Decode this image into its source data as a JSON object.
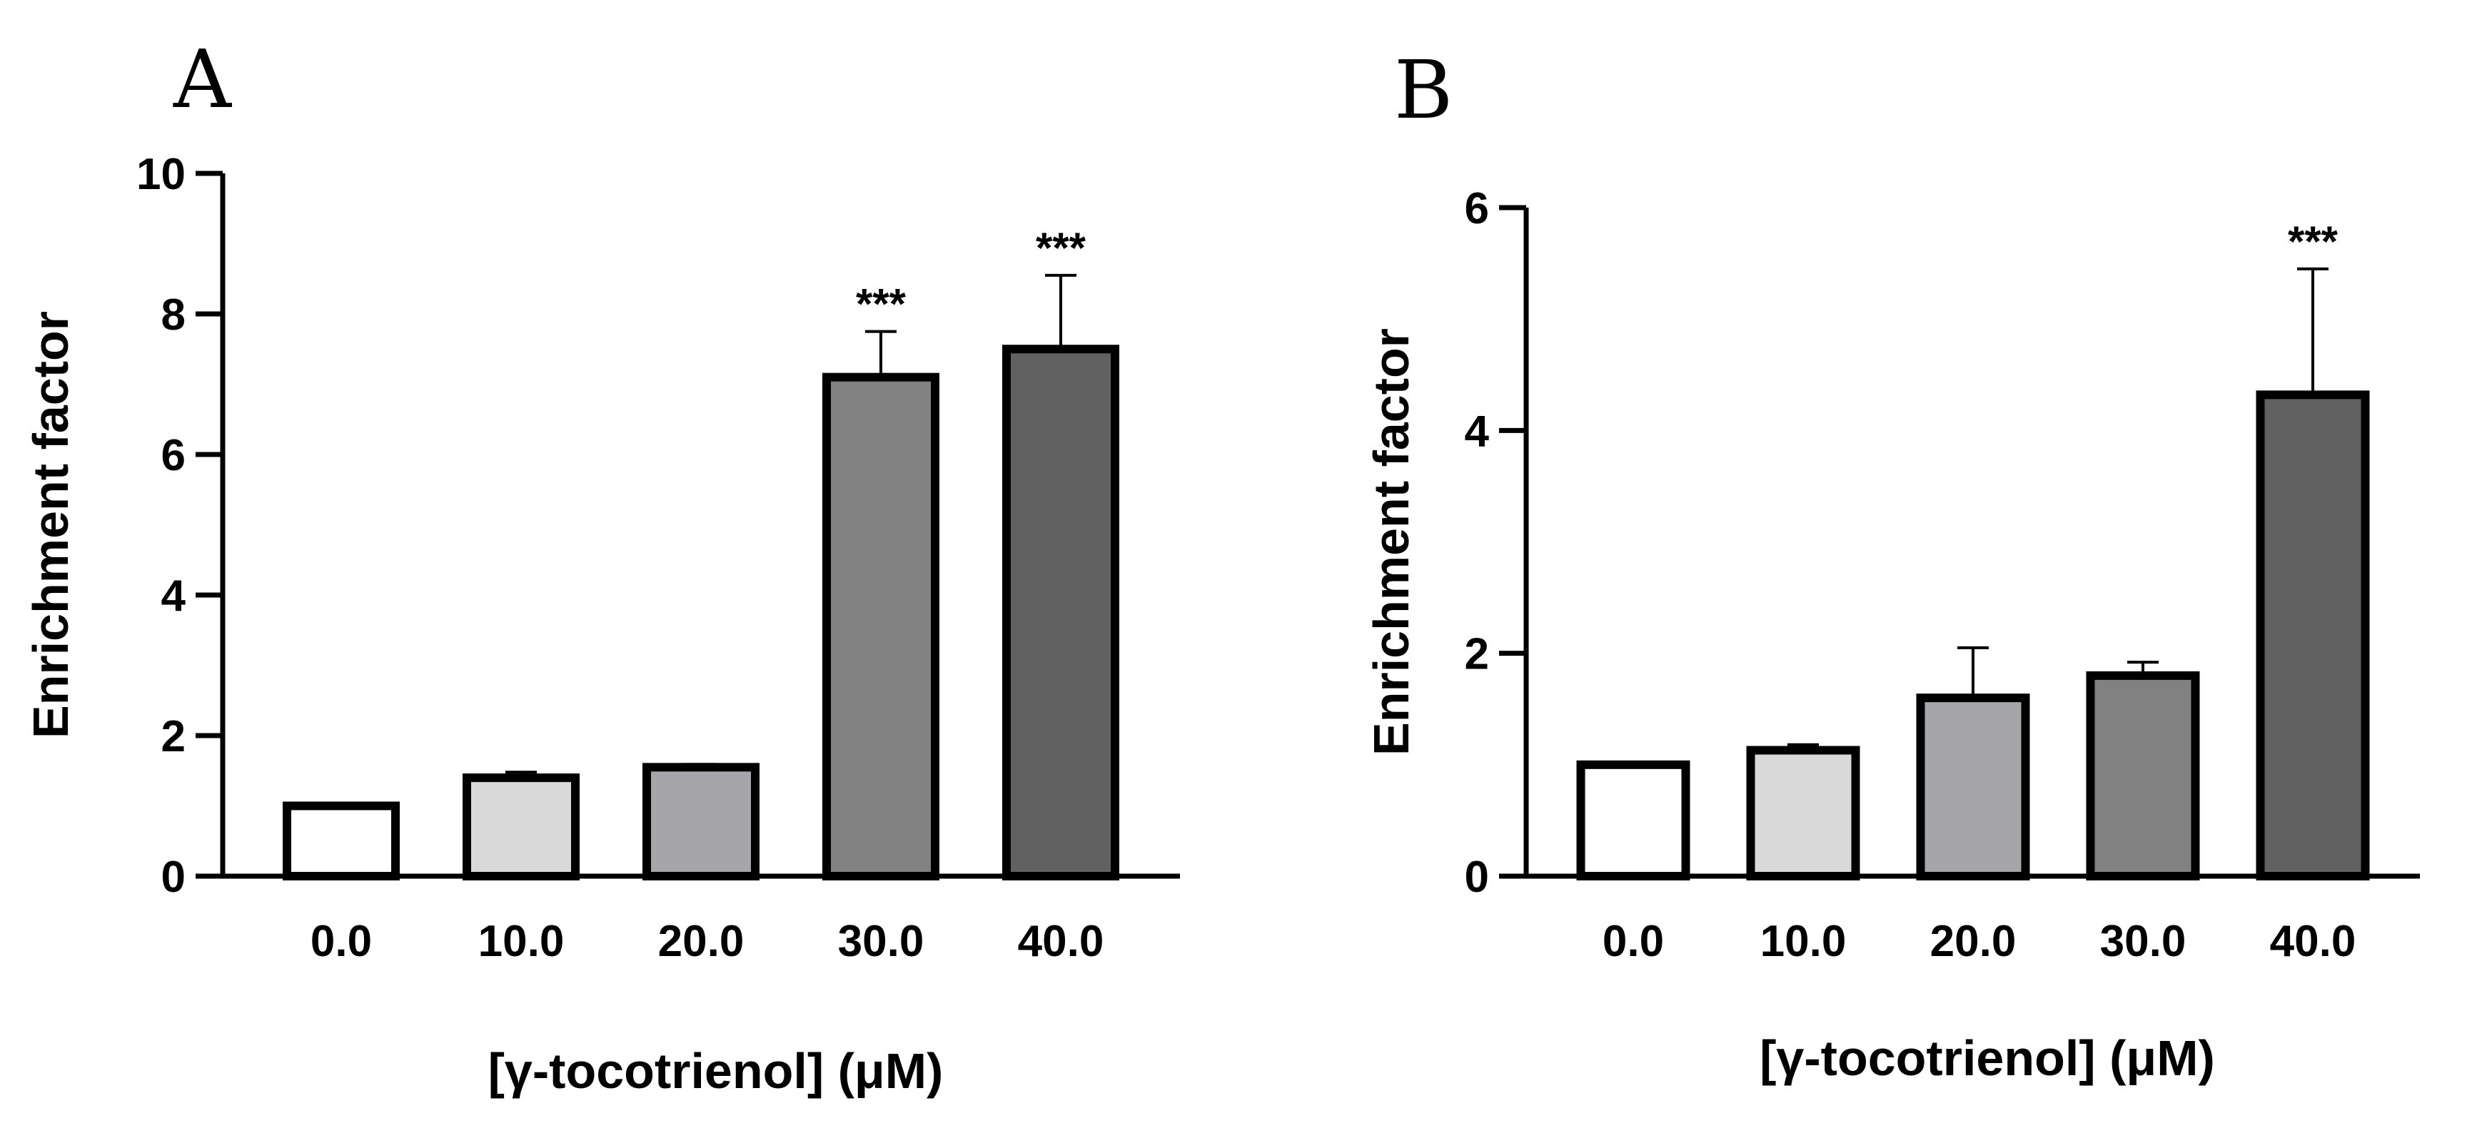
{
  "chart_data": [
    {
      "panel": "A",
      "type": "bar",
      "title": "",
      "xlabel": "[γ-tocotrienol] (μM)",
      "ylabel": "Enrichment factor",
      "ylim": [
        0,
        10
      ],
      "yticks": [
        0,
        2,
        4,
        6,
        8,
        10
      ],
      "categories": [
        "0.0",
        "10.0",
        "20.0",
        "30.0",
        "40.0"
      ],
      "values": [
        1.0,
        1.4,
        1.55,
        7.1,
        7.5
      ],
      "errors": [
        0,
        0.08,
        0.04,
        0.65,
        1.05
      ],
      "significance": [
        "",
        "",
        "",
        "***",
        "***"
      ],
      "bar_colors": [
        "#ffffff",
        "#d9d9d9",
        "#a6a6aa",
        "#818181",
        "#616161"
      ],
      "grid": false,
      "legend": "none"
    },
    {
      "panel": "B",
      "type": "bar",
      "title": "",
      "xlabel": "[γ-tocotrienol] (μM)",
      "ylabel": "Enrichment factor",
      "ylim": [
        0,
        6
      ],
      "yticks": [
        0,
        2,
        4,
        6
      ],
      "categories": [
        "0.0",
        "10.0",
        "20.0",
        "30.0",
        "40.0"
      ],
      "values": [
        1.0,
        1.13,
        1.6,
        1.8,
        4.32
      ],
      "errors": [
        0,
        0.05,
        0.45,
        0.12,
        1.13
      ],
      "significance": [
        "",
        "",
        "",
        "",
        "***"
      ],
      "bar_colors": [
        "#ffffff",
        "#d9d9d9",
        "#a6a6aa",
        "#818181",
        "#616161"
      ],
      "grid": false,
      "legend": "none"
    }
  ]
}
